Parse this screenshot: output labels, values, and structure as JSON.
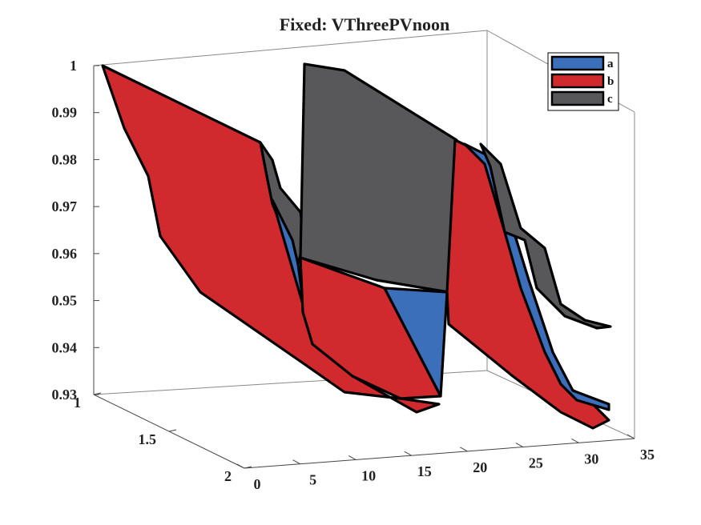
{
  "chart_data": {
    "type": "surface3d",
    "title": "Fixed: VThreePVnoon",
    "xlabel": "",
    "ylabel": "",
    "zlabel": "",
    "xlim": [
      0,
      35
    ],
    "ylim": [
      1,
      2
    ],
    "zlim": [
      0.93,
      1.0
    ],
    "x_ticks": [
      "0",
      "5",
      "10",
      "15",
      "20",
      "25",
      "30",
      "35"
    ],
    "y_ticks": [
      "1",
      "1.5",
      "2"
    ],
    "z_ticks": [
      "0.93",
      "0.94",
      "0.95",
      "0.96",
      "0.97",
      "0.98",
      "0.99",
      "1"
    ],
    "legend": {
      "placement": "top-right",
      "entries": [
        "a",
        "b",
        "c"
      ]
    },
    "colors": {
      "a": "#3b6fba",
      "b": "#d12a2e",
      "c": "#58585a"
    },
    "series": [
      {
        "name": "b",
        "values": [
          [
            1.0,
            0.986,
            0.976,
            0.964,
            0.957,
            0.952,
            0.948,
            0.944,
            0.94,
            0.937,
            0.934,
            0.932,
            0.931,
            0.93,
            0.93,
            0.931,
            0.9565
          ],
          [
            0.975,
            0.972,
            0.968,
            0.966,
            0.963,
            0.96,
            0.957,
            0.955,
            0.952,
            0.95,
            0.947,
            0.945,
            0.942,
            0.94,
            0.937,
            0.934,
            0.931
          ],
          [
            0.934,
            0.936,
            0.938,
            0.94,
            0.942,
            0.944,
            0.946,
            0.948,
            0.95,
            0.952,
            0.954,
            0.956,
            0.958,
            0.96,
            0.963,
            0.966,
            0.97
          ]
        ]
      },
      {
        "name": "c",
        "values": [
          [
            0.997,
            0.995,
            0.993,
            0.99,
            0.988,
            0.985,
            0.983,
            0.98,
            0.978,
            0.975,
            0.972,
            0.969,
            0.966,
            0.963,
            0.96,
            0.957,
            0.9545
          ]
        ]
      },
      {
        "name": "a",
        "values": [
          [
            0.955,
            0.952,
            0.949,
            0.946,
            0.943,
            0.941,
            0.939,
            0.937,
            0.936,
            0.935,
            0.934,
            0.933,
            0.932,
            0.931,
            0.931,
            0.931,
            0.931
          ]
        ]
      }
    ]
  }
}
